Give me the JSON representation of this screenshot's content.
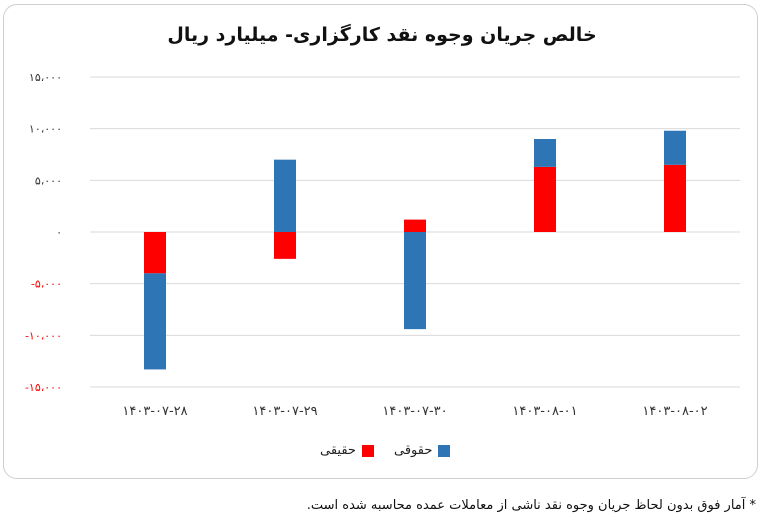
{
  "chart_data": {
    "type": "bar",
    "stacked": true,
    "title": "خالص جریان وجوه نقد کارگزاری- میلیارد ریال",
    "categories": [
      "۱۴۰۳-۰۷-۲۸",
      "۱۴۰۳-۰۷-۲۹",
      "۱۴۰۳-۰۷-۳۰",
      "۱۴۰۳-۰۸-۰۱",
      "۱۴۰۳-۰۸-۰۲"
    ],
    "series": [
      {
        "name": "حقیقی",
        "color": "#ff0000",
        "values": [
          -4000,
          -2600,
          1200,
          6300,
          6500
        ]
      },
      {
        "name": "حقوقی",
        "color": "#2e75b6",
        "values": [
          -9300,
          7000,
          -9400,
          2700,
          3300
        ]
      }
    ],
    "ylim": [
      -15000,
      15000
    ],
    "yticks": [
      {
        "value": 15000,
        "label": "۱۵،۰۰۰"
      },
      {
        "value": 10000,
        "label": "۱۰،۰۰۰"
      },
      {
        "value": 5000,
        "label": "۵،۰۰۰"
      },
      {
        "value": 0,
        "label": "۰"
      },
      {
        "value": -5000,
        "label": "-۵،۰۰۰"
      },
      {
        "value": -10000,
        "label": "-۱۰،۰۰۰"
      },
      {
        "value": -15000,
        "label": "-۱۵،۰۰۰"
      }
    ],
    "negative_tick_color": "#ff0000",
    "grid": true,
    "legend_position": "bottom",
    "xlabel": "",
    "ylabel": ""
  },
  "legend": {
    "items": [
      {
        "label": "حقیقی",
        "color": "#ff0000"
      },
      {
        "label": "حقوقی",
        "color": "#2e75b6"
      }
    ]
  },
  "footnote": "* آمار فوق بدون لحاظ جریان وجوه نقد ناشی از معاملات عمده محاسبه شده است."
}
